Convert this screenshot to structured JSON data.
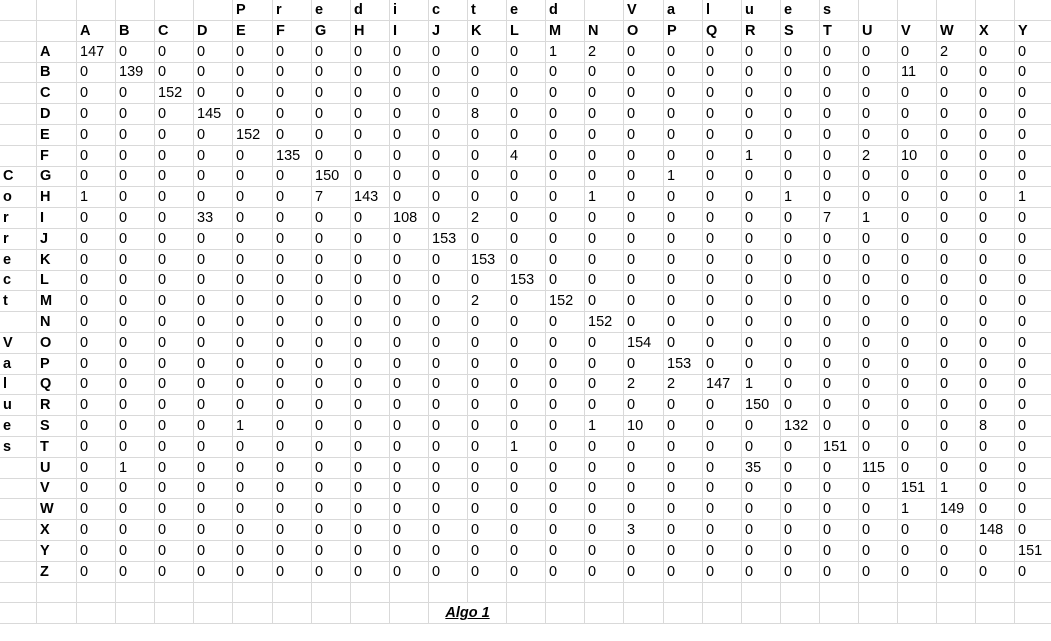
{
  "sheet": {
    "col_headers": [
      "A",
      "B",
      "C",
      "D",
      "E",
      "F",
      "G",
      "H",
      "I",
      "J",
      "K",
      "L",
      "M",
      "N",
      "O",
      "P",
      "Q",
      "R",
      "S",
      "T",
      "U",
      "V",
      "W",
      "X",
      "Y"
    ],
    "title_letters": [
      "P",
      "r",
      "e",
      "d",
      "i",
      "c",
      "t",
      "e",
      "d",
      "",
      "V",
      "a",
      "l",
      "u",
      "e",
      "s"
    ],
    "side_letters": [
      "C",
      "o",
      "r",
      "r",
      "e",
      "c",
      "t",
      "",
      "V",
      "a",
      "l",
      "u",
      "e",
      "s"
    ],
    "row_labels": [
      "A",
      "B",
      "C",
      "D",
      "E",
      "F",
      "G",
      "H",
      "I",
      "J",
      "K",
      "L",
      "M",
      "N",
      "O",
      "P",
      "Q",
      "R",
      "S",
      "T",
      "U",
      "V",
      "W",
      "X",
      "Y",
      "Z"
    ],
    "matrix": [
      [
        147,
        0,
        0,
        0,
        0,
        0,
        0,
        0,
        0,
        0,
        0,
        0,
        1,
        2,
        0,
        0,
        0,
        0,
        0,
        0,
        0,
        0,
        2,
        0,
        0
      ],
      [
        0,
        139,
        0,
        0,
        0,
        0,
        0,
        0,
        0,
        0,
        0,
        0,
        0,
        0,
        0,
        0,
        0,
        0,
        0,
        0,
        0,
        11,
        0,
        0,
        0
      ],
      [
        0,
        0,
        152,
        0,
        0,
        0,
        0,
        0,
        0,
        0,
        0,
        0,
        0,
        0,
        0,
        0,
        0,
        0,
        0,
        0,
        0,
        0,
        0,
        0,
        0
      ],
      [
        0,
        0,
        0,
        145,
        0,
        0,
        0,
        0,
        0,
        0,
        8,
        0,
        0,
        0,
        0,
        0,
        0,
        0,
        0,
        0,
        0,
        0,
        0,
        0,
        0
      ],
      [
        0,
        0,
        0,
        0,
        152,
        0,
        0,
        0,
        0,
        0,
        0,
        0,
        0,
        0,
        0,
        0,
        0,
        0,
        0,
        0,
        0,
        0,
        0,
        0,
        0
      ],
      [
        0,
        0,
        0,
        0,
        0,
        135,
        0,
        0,
        0,
        0,
        0,
        4,
        0,
        0,
        0,
        0,
        0,
        1,
        0,
        0,
        2,
        10,
        0,
        0,
        0
      ],
      [
        0,
        0,
        0,
        0,
        0,
        0,
        150,
        0,
        0,
        0,
        0,
        0,
        0,
        0,
        0,
        1,
        0,
        0,
        0,
        0,
        0,
        0,
        0,
        0,
        0
      ],
      [
        1,
        0,
        0,
        0,
        0,
        0,
        7,
        143,
        0,
        0,
        0,
        0,
        0,
        1,
        0,
        0,
        0,
        0,
        1,
        0,
        0,
        0,
        0,
        0,
        1
      ],
      [
        0,
        0,
        0,
        33,
        0,
        0,
        0,
        0,
        108,
        0,
        2,
        0,
        0,
        0,
        0,
        0,
        0,
        0,
        0,
        7,
        1,
        0,
        0,
        0,
        0
      ],
      [
        0,
        0,
        0,
        0,
        0,
        0,
        0,
        0,
        0,
        153,
        0,
        0,
        0,
        0,
        0,
        0,
        0,
        0,
        0,
        0,
        0,
        0,
        0,
        0,
        0
      ],
      [
        0,
        0,
        0,
        0,
        0,
        0,
        0,
        0,
        0,
        0,
        153,
        0,
        0,
        0,
        0,
        0,
        0,
        0,
        0,
        0,
        0,
        0,
        0,
        0,
        0
      ],
      [
        0,
        0,
        0,
        0,
        0,
        0,
        0,
        0,
        0,
        0,
        0,
        153,
        0,
        0,
        0,
        0,
        0,
        0,
        0,
        0,
        0,
        0,
        0,
        0,
        0
      ],
      [
        0,
        0,
        0,
        0,
        0,
        0,
        0,
        0,
        0,
        0,
        2,
        0,
        152,
        0,
        0,
        0,
        0,
        0,
        0,
        0,
        0,
        0,
        0,
        0,
        0
      ],
      [
        0,
        0,
        0,
        0,
        0,
        0,
        0,
        0,
        0,
        0,
        0,
        0,
        0,
        152,
        0,
        0,
        0,
        0,
        0,
        0,
        0,
        0,
        0,
        0,
        0
      ],
      [
        0,
        0,
        0,
        0,
        0,
        0,
        0,
        0,
        0,
        0,
        0,
        0,
        0,
        0,
        154,
        0,
        0,
        0,
        0,
        0,
        0,
        0,
        0,
        0,
        0
      ],
      [
        0,
        0,
        0,
        0,
        0,
        0,
        0,
        0,
        0,
        0,
        0,
        0,
        0,
        0,
        0,
        153,
        0,
        0,
        0,
        0,
        0,
        0,
        0,
        0,
        0
      ],
      [
        0,
        0,
        0,
        0,
        0,
        0,
        0,
        0,
        0,
        0,
        0,
        0,
        0,
        0,
        2,
        2,
        147,
        1,
        0,
        0,
        0,
        0,
        0,
        0,
        0
      ],
      [
        0,
        0,
        0,
        0,
        0,
        0,
        0,
        0,
        0,
        0,
        0,
        0,
        0,
        0,
        0,
        0,
        0,
        150,
        0,
        0,
        0,
        0,
        0,
        0,
        0
      ],
      [
        0,
        0,
        0,
        0,
        1,
        0,
        0,
        0,
        0,
        0,
        0,
        0,
        0,
        1,
        10,
        0,
        0,
        0,
        132,
        0,
        0,
        0,
        0,
        8,
        0
      ],
      [
        0,
        0,
        0,
        0,
        0,
        0,
        0,
        0,
        0,
        0,
        0,
        1,
        0,
        0,
        0,
        0,
        0,
        0,
        0,
        151,
        0,
        0,
        0,
        0,
        0
      ],
      [
        0,
        1,
        0,
        0,
        0,
        0,
        0,
        0,
        0,
        0,
        0,
        0,
        0,
        0,
        0,
        0,
        0,
        35,
        0,
        0,
        115,
        0,
        0,
        0,
        0
      ],
      [
        0,
        0,
        0,
        0,
        0,
        0,
        0,
        0,
        0,
        0,
        0,
        0,
        0,
        0,
        0,
        0,
        0,
        0,
        0,
        0,
        0,
        151,
        1,
        0,
        0
      ],
      [
        0,
        0,
        0,
        0,
        0,
        0,
        0,
        0,
        0,
        0,
        0,
        0,
        0,
        0,
        0,
        0,
        0,
        0,
        0,
        0,
        0,
        1,
        149,
        0,
        0
      ],
      [
        0,
        0,
        0,
        0,
        0,
        0,
        0,
        0,
        0,
        0,
        0,
        0,
        0,
        0,
        3,
        0,
        0,
        0,
        0,
        0,
        0,
        0,
        0,
        148,
        0
      ],
      [
        0,
        0,
        0,
        0,
        0,
        0,
        0,
        0,
        0,
        0,
        0,
        0,
        0,
        0,
        0,
        0,
        0,
        0,
        0,
        0,
        0,
        0,
        0,
        0,
        151
      ],
      [
        0,
        0,
        0,
        0,
        0,
        0,
        0,
        0,
        0,
        0,
        0,
        0,
        0,
        0,
        0,
        0,
        0,
        0,
        0,
        0,
        0,
        0,
        0,
        0,
        0
      ]
    ],
    "caption": "Algo 1"
  }
}
